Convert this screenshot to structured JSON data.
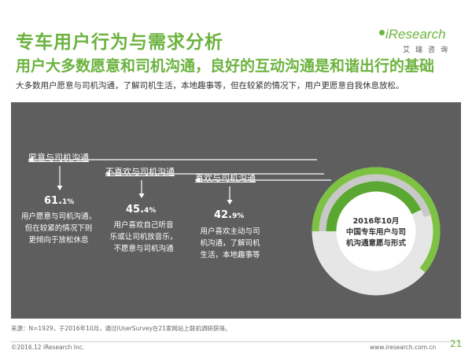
{
  "header": {
    "title": "专车用户行为与需求分析",
    "subtitle": "用户大多数愿意和司机沟通，良好的互动沟通是和谐出行的基础",
    "description": "大多数用户愿意与司机沟通，了解司机生活，本地趣事等，但在较紧的情况下，用户更愿意自我休息放松。"
  },
  "logo": {
    "text": "iResearch",
    "cn": "艾瑞咨询"
  },
  "chart_data": {
    "type": "donut",
    "center_label_lines": [
      "2016年10月",
      "中国专车用户与司",
      "机沟通意愿与形式"
    ],
    "unit": "%",
    "series": [
      {
        "label": "愿意与司机沟通",
        "value": 61.1,
        "value_main": "61.",
        "value_decimal": "1%",
        "note_lines": [
          "用户愿意与司机沟通，",
          "但在较紧的情况下则",
          "更倾向于放松休息"
        ],
        "color": "#7dc242"
      },
      {
        "label": "不喜欢与司机沟通",
        "value": 45.4,
        "value_main": "45.",
        "value_decimal": "4%",
        "note_lines": [
          "用户喜欢自己听音",
          "乐或让司机放音乐，",
          "不愿意与司机沟通"
        ],
        "color": "#c8c8c8"
      },
      {
        "label": "喜欢与司机沟通",
        "value": 42.9,
        "value_main": "42.",
        "value_decimal": "9%",
        "note_lines": [
          "用户喜欢主动与司",
          "机沟通，了解司机",
          "生活，本地趣事等"
        ],
        "color": "#5aa832"
      }
    ]
  },
  "footer": {
    "source": "来源：N=1929，于2016年10月，通过iUserSurvey在21家网站上联机调研获得。",
    "copyright": "©2016.12 iResearch Inc.",
    "website": "www.iresearch.com.cn",
    "page": "21"
  }
}
